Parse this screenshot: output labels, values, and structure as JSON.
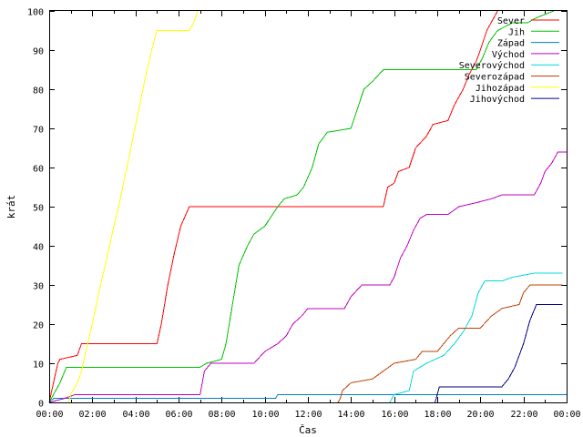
{
  "chart_data": {
    "type": "line",
    "title": "",
    "xlabel": "Čas",
    "ylabel": "krát",
    "xlim": [
      0,
      24
    ],
    "ylim": [
      0,
      100
    ],
    "x_unit": "hours",
    "x_tick_labels": [
      "00:00",
      "02:00",
      "04:00",
      "06:00",
      "08:00",
      "10:00",
      "12:00",
      "14:00",
      "16:00",
      "18:00",
      "20:00",
      "22:00",
      "00:00"
    ],
    "y_tick_labels": [
      "0",
      "10",
      "20",
      "30",
      "40",
      "50",
      "60",
      "70",
      "80",
      "90",
      "100"
    ],
    "legend_position": "top-right",
    "series": [
      {
        "name": "Sever",
        "color": "#ff0000",
        "points": [
          [
            0,
            0
          ],
          [
            0.2,
            5
          ],
          [
            0.4,
            10
          ],
          [
            0.5,
            11
          ],
          [
            1.3,
            12
          ],
          [
            1.5,
            15
          ],
          [
            5.0,
            15
          ],
          [
            5.2,
            20
          ],
          [
            5.5,
            30
          ],
          [
            5.8,
            38
          ],
          [
            6.1,
            45
          ],
          [
            6.5,
            50
          ],
          [
            15.5,
            50
          ],
          [
            15.7,
            55
          ],
          [
            16.0,
            56
          ],
          [
            16.2,
            59
          ],
          [
            16.7,
            60
          ],
          [
            17.0,
            65
          ],
          [
            17.5,
            68
          ],
          [
            17.8,
            71
          ],
          [
            18.5,
            72
          ],
          [
            18.8,
            76
          ],
          [
            19.2,
            80
          ],
          [
            19.5,
            84
          ],
          [
            19.8,
            87
          ],
          [
            20.0,
            90
          ],
          [
            20.3,
            95
          ],
          [
            20.6,
            98
          ],
          [
            20.8,
            100
          ]
        ]
      },
      {
        "name": "Jih",
        "color": "#00c000",
        "points": [
          [
            0,
            0
          ],
          [
            0.5,
            5
          ],
          [
            0.8,
            9
          ],
          [
            7.0,
            9
          ],
          [
            7.3,
            10
          ],
          [
            8.0,
            11
          ],
          [
            8.2,
            15
          ],
          [
            8.5,
            25
          ],
          [
            8.8,
            35
          ],
          [
            9.2,
            40
          ],
          [
            9.5,
            43
          ],
          [
            10.0,
            45
          ],
          [
            10.6,
            50
          ],
          [
            10.9,
            52
          ],
          [
            11.5,
            53
          ],
          [
            11.8,
            55
          ],
          [
            12.2,
            60
          ],
          [
            12.5,
            66
          ],
          [
            12.9,
            69
          ],
          [
            14.0,
            70
          ],
          [
            14.3,
            75
          ],
          [
            14.6,
            80
          ],
          [
            15.0,
            82
          ],
          [
            15.5,
            85
          ],
          [
            19.8,
            85
          ],
          [
            20.1,
            88
          ],
          [
            20.4,
            92
          ],
          [
            20.8,
            95
          ],
          [
            21.5,
            97
          ],
          [
            22.2,
            97
          ],
          [
            22.5,
            98
          ],
          [
            23.4,
            100
          ]
        ]
      },
      {
        "name": "Západ",
        "color": "#0080c0",
        "points": [
          [
            0,
            0
          ],
          [
            0.2,
            1
          ],
          [
            1.5,
            1
          ],
          [
            10.5,
            1
          ],
          [
            10.6,
            2
          ],
          [
            24,
            2
          ]
        ]
      },
      {
        "name": "Východ",
        "color": "#c000c0",
        "points": [
          [
            0,
            0
          ],
          [
            0.7,
            1
          ],
          [
            1.2,
            2
          ],
          [
            7.0,
            2
          ],
          [
            7.2,
            8
          ],
          [
            7.5,
            10
          ],
          [
            9.5,
            10
          ],
          [
            10.0,
            13
          ],
          [
            10.6,
            15
          ],
          [
            11.0,
            17
          ],
          [
            11.3,
            20
          ],
          [
            11.7,
            22
          ],
          [
            12.0,
            24
          ],
          [
            13.7,
            24
          ],
          [
            14.0,
            27
          ],
          [
            14.5,
            30
          ],
          [
            15.8,
            30
          ],
          [
            16.0,
            32
          ],
          [
            16.3,
            37
          ],
          [
            16.6,
            40
          ],
          [
            16.9,
            44
          ],
          [
            17.2,
            47
          ],
          [
            17.5,
            48
          ],
          [
            18.5,
            48
          ],
          [
            19.0,
            50
          ],
          [
            19.8,
            51
          ],
          [
            20.5,
            52
          ],
          [
            21.0,
            53
          ],
          [
            22.5,
            53
          ],
          [
            22.8,
            56
          ],
          [
            23.0,
            59
          ],
          [
            23.3,
            61
          ],
          [
            23.6,
            64
          ],
          [
            24,
            64
          ]
        ]
      },
      {
        "name": "Severovýchod",
        "color": "#00d8d8",
        "points": [
          [
            15.8,
            0
          ],
          [
            16.0,
            2
          ],
          [
            16.7,
            3
          ],
          [
            16.9,
            8
          ],
          [
            17.5,
            10
          ],
          [
            18.3,
            12
          ],
          [
            18.8,
            15
          ],
          [
            19.2,
            18
          ],
          [
            19.6,
            22
          ],
          [
            19.9,
            28
          ],
          [
            20.2,
            31
          ],
          [
            21.0,
            31
          ],
          [
            21.5,
            32
          ],
          [
            22.5,
            33
          ],
          [
            23.8,
            33
          ]
        ]
      },
      {
        "name": "Severozápad",
        "color": "#c04000",
        "points": [
          [
            13.4,
            0
          ],
          [
            13.5,
            1
          ],
          [
            13.6,
            3
          ],
          [
            14.0,
            5
          ],
          [
            15.0,
            6
          ],
          [
            15.5,
            8
          ],
          [
            16.0,
            10
          ],
          [
            17.0,
            11
          ],
          [
            17.3,
            13
          ],
          [
            18.0,
            13
          ],
          [
            18.3,
            15
          ],
          [
            18.6,
            17
          ],
          [
            19.0,
            19
          ],
          [
            20.0,
            19
          ],
          [
            20.5,
            22
          ],
          [
            21.0,
            24
          ],
          [
            21.8,
            25
          ],
          [
            22.0,
            28
          ],
          [
            22.3,
            30
          ],
          [
            23.8,
            30
          ]
        ]
      },
      {
        "name": "Jihozápad",
        "color": "#ffff00",
        "points": [
          [
            0.9,
            0
          ],
          [
            1.0,
            2
          ],
          [
            1.3,
            5
          ],
          [
            1.5,
            8
          ],
          [
            1.7,
            13
          ],
          [
            2.0,
            20
          ],
          [
            2.3,
            28
          ],
          [
            2.6,
            35
          ],
          [
            3.0,
            45
          ],
          [
            3.3,
            52
          ],
          [
            3.6,
            60
          ],
          [
            3.9,
            68
          ],
          [
            4.2,
            76
          ],
          [
            4.5,
            84
          ],
          [
            4.8,
            91
          ],
          [
            5.0,
            95
          ],
          [
            6.5,
            95
          ],
          [
            6.7,
            97
          ],
          [
            6.9,
            100
          ]
        ]
      },
      {
        "name": "Jihovýchod",
        "color": "#000080",
        "points": [
          [
            17.9,
            0
          ],
          [
            18.0,
            2
          ],
          [
            18.1,
            4
          ],
          [
            21.0,
            4
          ],
          [
            21.3,
            6
          ],
          [
            21.6,
            9
          ],
          [
            22.0,
            15
          ],
          [
            22.3,
            21
          ],
          [
            22.6,
            25
          ],
          [
            23.8,
            25
          ]
        ]
      }
    ]
  }
}
